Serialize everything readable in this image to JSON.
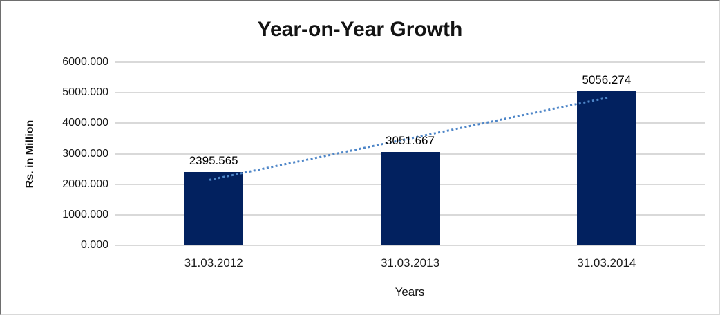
{
  "chart_data": {
    "type": "bar",
    "title": "Year-on-Year Growth",
    "xlabel": "Years",
    "ylabel": "Rs. in Million",
    "categories": [
      "31.03.2012",
      "31.03.2013",
      "31.03.2014"
    ],
    "values": [
      2395.565,
      3051.667,
      5056.274
    ],
    "value_labels": [
      "2395.565",
      "3051.667",
      "5056.274"
    ],
    "y_ticks": [
      "6000.000",
      "5000.000",
      "4000.000",
      "3000.000",
      "2000.000",
      "1000.000",
      "0.000"
    ],
    "ylim": [
      0,
      6000
    ],
    "y_tick_step": 1000,
    "grid": true,
    "legend_position": "none",
    "bar_color": "#02215F",
    "gridline_color": "#d9d9d9",
    "trendline": {
      "type": "linear",
      "style": "dotted",
      "color": "#4E86C8"
    }
  }
}
